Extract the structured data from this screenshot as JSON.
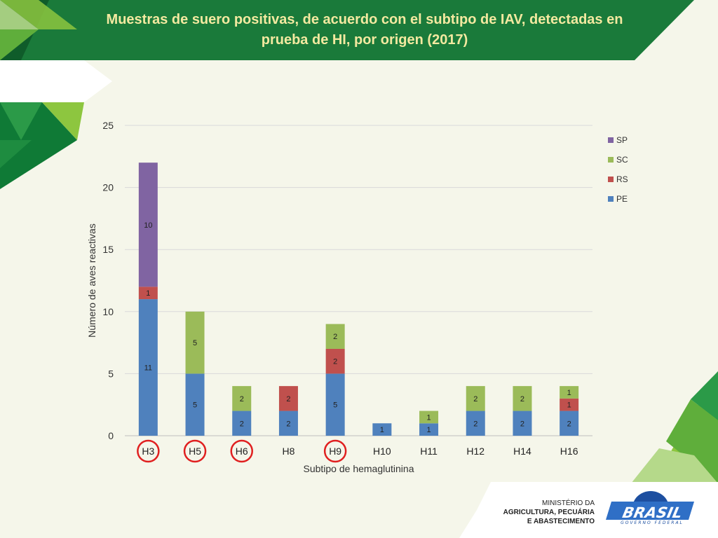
{
  "slide": {
    "title": "Muestras de suero positivas, de acuerdo con el subtipo de IAV, detectadas en prueba de HI, por origen (2017)",
    "colors": {
      "banner": "#1a7a3a",
      "banner_dark": "#0f5c2a",
      "light_green": "#8dc63f",
      "background": "#f5f6ea",
      "highlight_circle": "#e02020"
    }
  },
  "logo": {
    "line1": "MINISTÉRIO DA",
    "line2": "AGRICULTURA, PECUÁRIA",
    "line3": "E ABASTECIMENTO",
    "brand": "BRASIL",
    "tagline": "GOVERNO FEDERAL"
  },
  "chart_data": {
    "type": "bar",
    "stacked": true,
    "title": "",
    "xlabel": "Subtipo de hemaglutinina",
    "ylabel": "Número de aves reactivas",
    "ylim": [
      0,
      25
    ],
    "yticks": [
      0,
      5,
      10,
      15,
      20,
      25
    ],
    "grid": true,
    "legend_position": "right",
    "categories": [
      "H3",
      "H5",
      "H6",
      "H8",
      "H9",
      "H10",
      "H11",
      "H12",
      "H14",
      "H16"
    ],
    "highlighted_categories": [
      "H3",
      "H5",
      "H6",
      "H9"
    ],
    "series": [
      {
        "name": "PE",
        "color": "#4f81bd",
        "values": [
          11,
          5,
          2,
          2,
          5,
          1,
          1,
          2,
          2,
          2
        ]
      },
      {
        "name": "RS",
        "color": "#c0504d",
        "values": [
          1,
          0,
          0,
          2,
          2,
          0,
          0,
          0,
          0,
          1
        ]
      },
      {
        "name": "SC",
        "color": "#9bbb59",
        "values": [
          0,
          5,
          2,
          0,
          2,
          0,
          1,
          2,
          2,
          1
        ]
      },
      {
        "name": "SP",
        "color": "#8064a2",
        "values": [
          10,
          0,
          0,
          0,
          0,
          0,
          0,
          0,
          0,
          0
        ]
      }
    ]
  }
}
